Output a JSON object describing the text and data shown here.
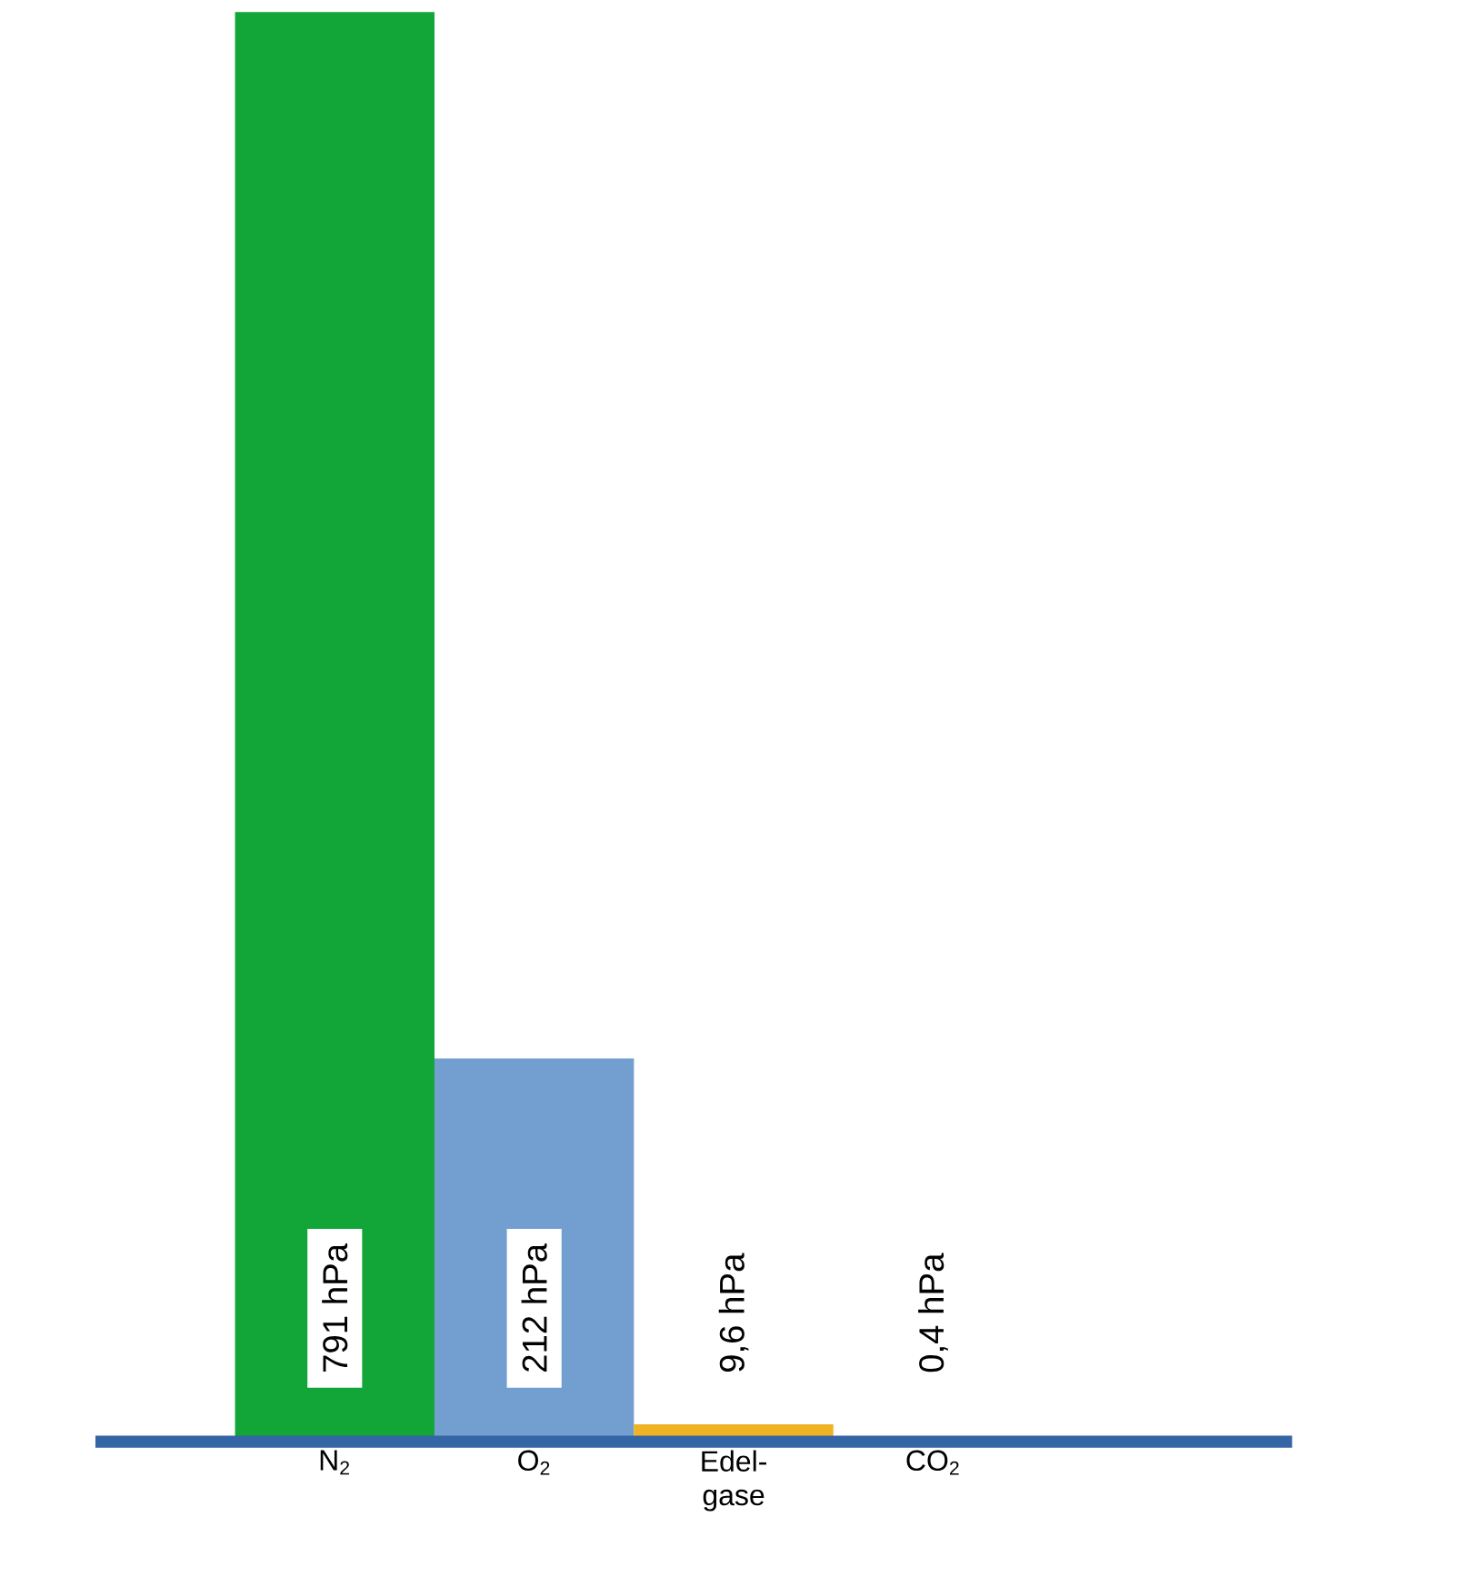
{
  "chart_data": {
    "type": "bar",
    "categories": [
      "N$_{2}$",
      "O$_{2}$",
      "Edel-gase",
      "CO$_{2}$"
    ],
    "values": [
      791,
      212,
      9.6,
      0.4
    ],
    "colors": [
      "#12a537",
      "#729fcf",
      "#f0b323",
      "#b4c7dc"
    ],
    "value_labels": [
      "791 hPa",
      "212 hPa",
      "9,6 hPa",
      "0,4 hPa"
    ]
  }
}
